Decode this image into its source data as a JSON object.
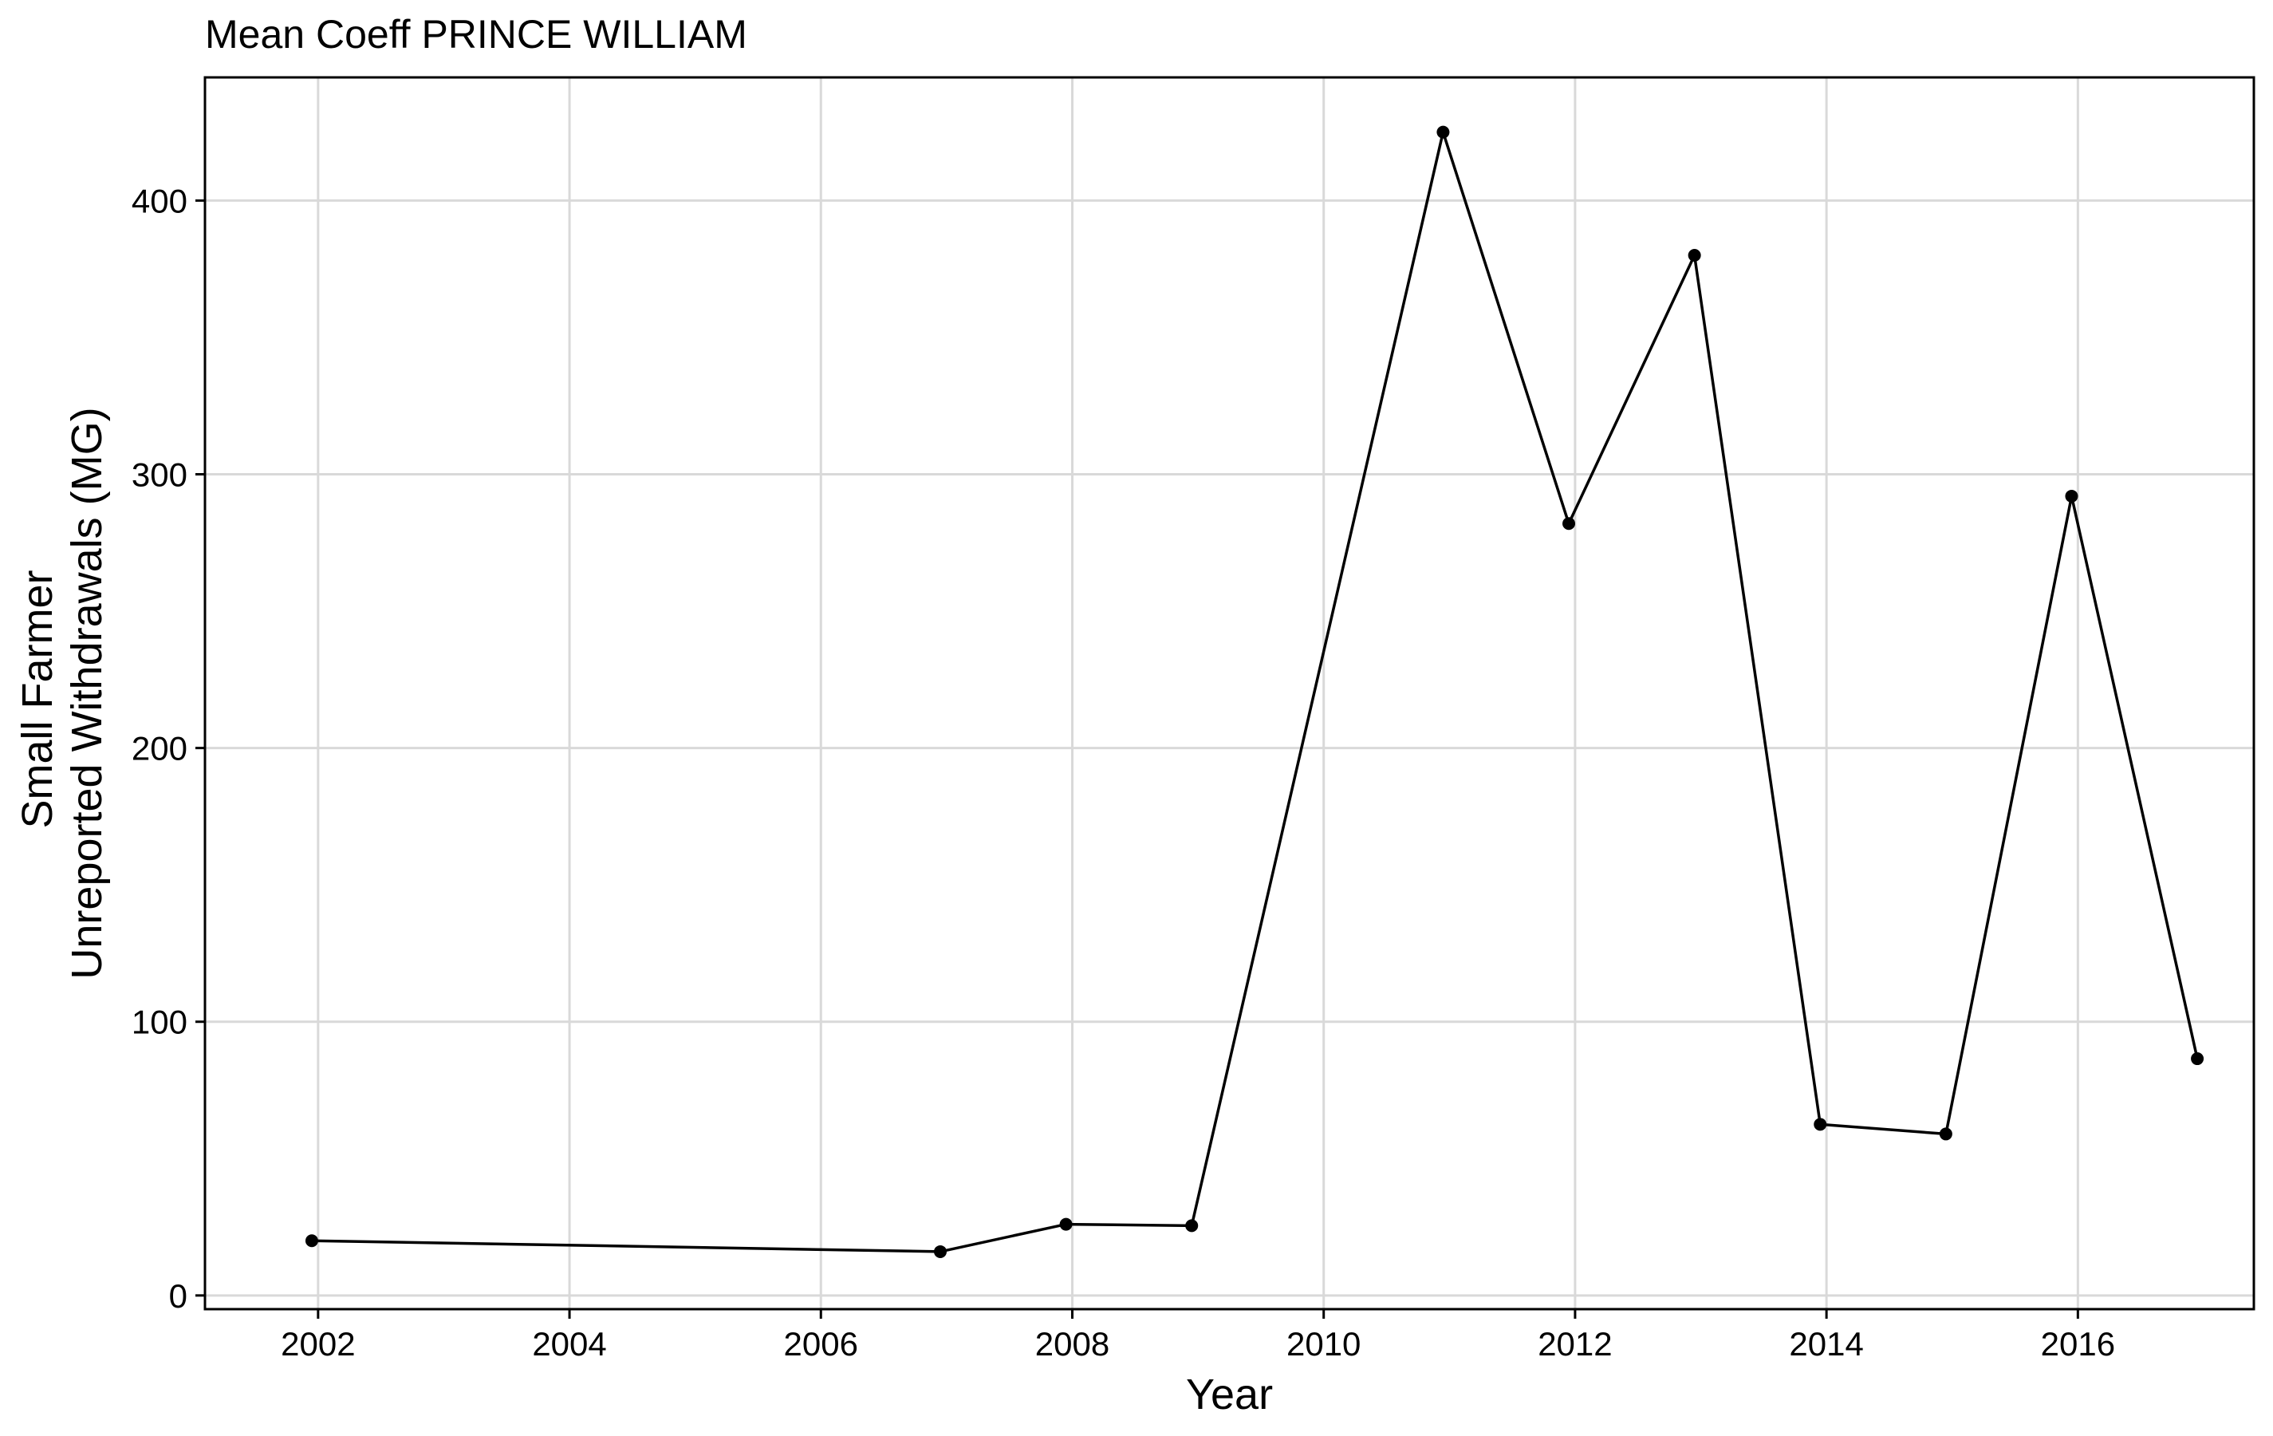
{
  "chart_data": {
    "type": "line",
    "title": "Mean Coeff PRINCE WILLIAM",
    "xlabel": "Year",
    "ylabel_lines": [
      "Small Farmer",
      "Unreported Withdrawals (MG)"
    ],
    "xlim": [
      2001.1,
      2017.4
    ],
    "ylim": [
      -5,
      445
    ],
    "x_ticks": [
      2002,
      2004,
      2006,
      2008,
      2010,
      2012,
      2014,
      2016
    ],
    "y_ticks": [
      0,
      100,
      200,
      300,
      400
    ],
    "grid": true,
    "series": [
      {
        "color": "#000000",
        "points": [
          {
            "x": 2001.95,
            "y": 20
          },
          {
            "x": 2006.95,
            "y": 16
          },
          {
            "x": 2007.95,
            "y": 26
          },
          {
            "x": 2008.95,
            "y": 25.5
          },
          {
            "x": 2010.95,
            "y": 425
          },
          {
            "x": 2011.95,
            "y": 282
          },
          {
            "x": 2012.95,
            "y": 380
          },
          {
            "x": 2013.95,
            "y": 62.5
          },
          {
            "x": 2014.95,
            "y": 59
          },
          {
            "x": 2015.95,
            "y": 292
          },
          {
            "x": 2016.95,
            "y": 86.5
          }
        ]
      }
    ]
  }
}
